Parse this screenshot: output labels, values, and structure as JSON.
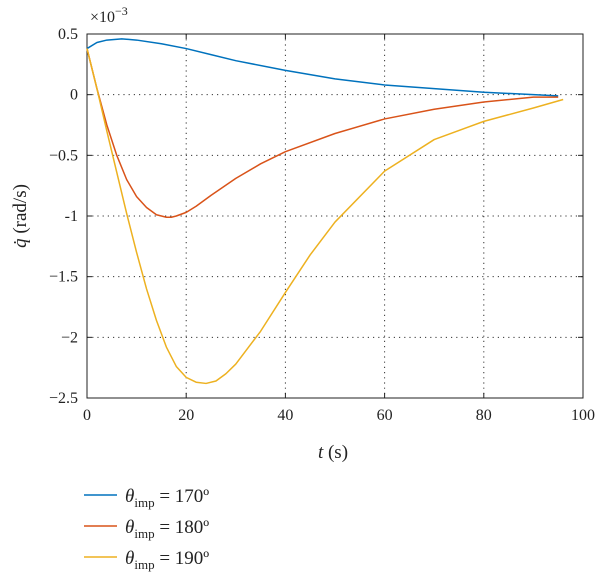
{
  "chart_data": {
    "type": "line",
    "title": "",
    "xlabel": {
      "symbol": "t",
      "unit": " (s)"
    },
    "ylabel": {
      "symbol": "q̇",
      "unit": " (rad/s)"
    },
    "y_multiplier_label": {
      "base": "×10",
      "exponent": "−3"
    },
    "xlim": [
      0,
      100
    ],
    "ylim": [
      -2.5,
      0.5
    ],
    "x_ticks": [
      0,
      20,
      40,
      60,
      80,
      100
    ],
    "x_tick_labels": [
      "0",
      "20",
      "40",
      "60",
      "80",
      "100"
    ],
    "y_ticks": [
      0.5,
      0,
      -0.5,
      -1,
      -1.5,
      -2,
      -2.5
    ],
    "y_tick_labels": [
      "0.5",
      "0",
      "−0.5",
      "-1",
      "−1.5",
      "−2",
      "−2.5"
    ],
    "grid": true,
    "grid_style": "dotted",
    "legend_position": "below-left",
    "series": [
      {
        "symbol": "θ",
        "subscript": "imp",
        "value_text": " = 170º",
        "color": "#0072BD",
        "x": [
          0,
          2,
          4,
          7,
          10,
          15,
          20,
          25,
          30,
          40,
          50,
          60,
          70,
          80,
          90,
          95
        ],
        "y": [
          0.38,
          0.43,
          0.45,
          0.46,
          0.45,
          0.42,
          0.38,
          0.33,
          0.28,
          0.2,
          0.13,
          0.08,
          0.05,
          0.02,
          0.0,
          -0.01
        ]
      },
      {
        "symbol": "θ",
        "subscript": "imp",
        "value_text": " = 180º",
        "color": "#D95319",
        "x": [
          0,
          2,
          4,
          6,
          8,
          10,
          12,
          14,
          16,
          17,
          18,
          20,
          22,
          25,
          30,
          35,
          40,
          50,
          60,
          70,
          80,
          90,
          95
        ],
        "y": [
          0.38,
          0.05,
          -0.25,
          -0.5,
          -0.7,
          -0.84,
          -0.93,
          -0.99,
          -1.01,
          -1.01,
          -1.0,
          -0.97,
          -0.92,
          -0.83,
          -0.69,
          -0.57,
          -0.47,
          -0.32,
          -0.2,
          -0.12,
          -0.06,
          -0.02,
          -0.02
        ]
      },
      {
        "symbol": "θ",
        "subscript": "imp",
        "value_text": " = 190º",
        "color": "#EDB120",
        "x": [
          0,
          2,
          4,
          6,
          8,
          10,
          12,
          14,
          16,
          18,
          20,
          22,
          24,
          26,
          28,
          30,
          35,
          40,
          45,
          50,
          60,
          70,
          80,
          90,
          96
        ],
        "y": [
          0.38,
          0.05,
          -0.3,
          -0.64,
          -0.98,
          -1.3,
          -1.6,
          -1.86,
          -2.08,
          -2.24,
          -2.33,
          -2.37,
          -2.38,
          -2.36,
          -2.3,
          -2.22,
          -1.95,
          -1.63,
          -1.32,
          -1.05,
          -0.63,
          -0.37,
          -0.22,
          -0.11,
          -0.04
        ]
      }
    ]
  }
}
